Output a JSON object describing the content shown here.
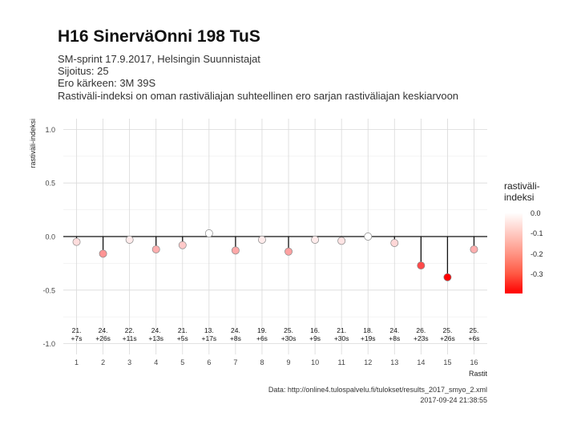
{
  "header": {
    "title": "H16 SinerväOnni 198 TuS",
    "line1": "SM-sprint 17.9.2017, Helsingin Suunnistajat",
    "line2": "Sijoitus: 25",
    "line3": "Ero kärkeen: 3M 39S",
    "line4": "Rastiväli-indeksi on oman rastiväliajan suhteellinen ero sarjan rastiväliajan keskiarvoon"
  },
  "caption": {
    "source": "Data: http://online4.tulospalvelu.fi/tulokset/results_2017_smyo_2.xml",
    "timestamp": "2017-09-24 21:38:55"
  },
  "legend": {
    "title_line1": "rastiväli-",
    "title_line2": "indeksi",
    "labels": [
      "0.0",
      "-0.1",
      "-0.2",
      "-0.3"
    ]
  },
  "chart_data": {
    "type": "scatter",
    "xlabel": "Rastit",
    "ylabel": "rastiväli-indeksi",
    "xlim": [
      0.5,
      16.5
    ],
    "ylim": [
      -1.1,
      1.1
    ],
    "x_ticks": [
      "1",
      "2",
      "3",
      "4",
      "5",
      "6",
      "7",
      "8",
      "9",
      "10",
      "11",
      "12",
      "13",
      "14",
      "15",
      "16"
    ],
    "y_ticks": [
      "1.0",
      "0.5",
      "0.0",
      "-0.5",
      "-1.0"
    ],
    "grid": true,
    "legend_position": "right",
    "color_low": "#ff0000",
    "color_high": "#ffffff",
    "points": [
      {
        "x": 1,
        "y": -0.05,
        "rank": "21.",
        "diff": "+7s"
      },
      {
        "x": 2,
        "y": -0.16,
        "rank": "24.",
        "diff": "+26s"
      },
      {
        "x": 3,
        "y": -0.03,
        "rank": "22.",
        "diff": "+11s"
      },
      {
        "x": 4,
        "y": -0.12,
        "rank": "24.",
        "diff": "+13s"
      },
      {
        "x": 5,
        "y": -0.08,
        "rank": "21.",
        "diff": "+5s"
      },
      {
        "x": 6,
        "y": 0.03,
        "rank": "13.",
        "diff": "+17s"
      },
      {
        "x": 7,
        "y": -0.13,
        "rank": "24.",
        "diff": "+8s"
      },
      {
        "x": 8,
        "y": -0.03,
        "rank": "19.",
        "diff": "+6s"
      },
      {
        "x": 9,
        "y": -0.14,
        "rank": "25.",
        "diff": "+30s"
      },
      {
        "x": 10,
        "y": -0.03,
        "rank": "16.",
        "diff": "+9s"
      },
      {
        "x": 11,
        "y": -0.04,
        "rank": "21.",
        "diff": "+30s"
      },
      {
        "x": 12,
        "y": 0.0,
        "rank": "18.",
        "diff": "+19s"
      },
      {
        "x": 13,
        "y": -0.06,
        "rank": "24.",
        "diff": "+8s"
      },
      {
        "x": 14,
        "y": -0.27,
        "rank": "26.",
        "diff": "+23s"
      },
      {
        "x": 15,
        "y": -0.38,
        "rank": "25.",
        "diff": "+26s"
      },
      {
        "x": 16,
        "y": -0.12,
        "rank": "25.",
        "diff": "+6s"
      }
    ]
  }
}
